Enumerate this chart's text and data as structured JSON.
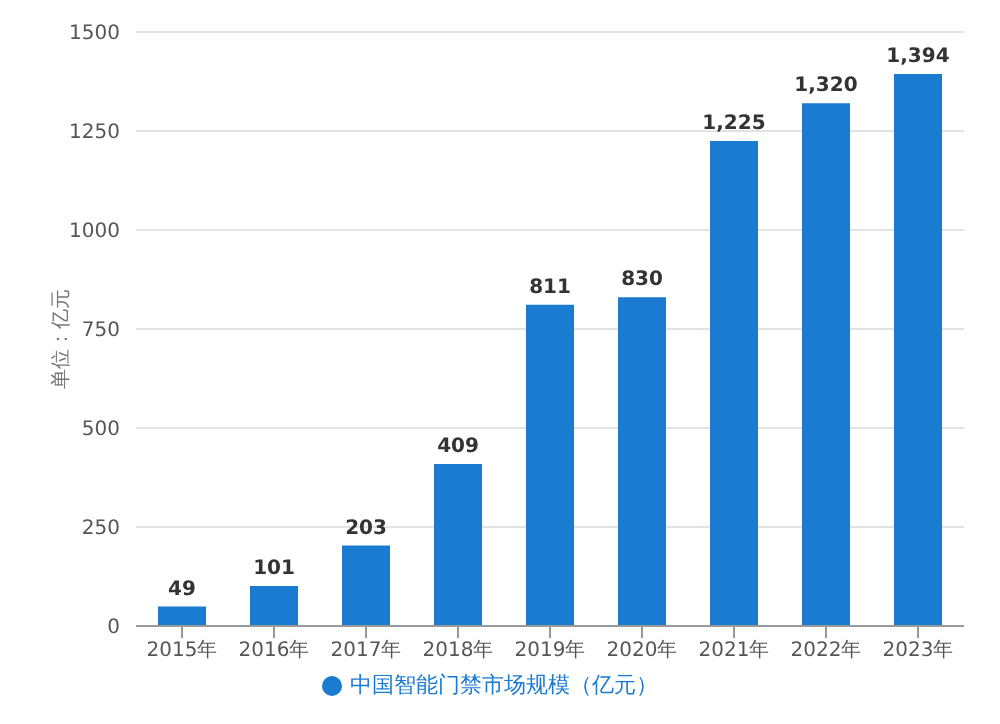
{
  "chart_data": {
    "type": "bar",
    "ylabel": "单位：亿元",
    "categories": [
      "2015年",
      "2016年",
      "2017年",
      "2018年",
      "2019年",
      "2020年",
      "2021年",
      "2022年",
      "2023年"
    ],
    "series": [
      {
        "name": "中国智能门禁市场规模（亿元）",
        "color": "#1a7bd0",
        "values": [
          49,
          101,
          203,
          409,
          811,
          830,
          1225,
          1320,
          1394
        ],
        "value_labels": [
          "49",
          "101",
          "203",
          "409",
          "811",
          "830",
          "1,225",
          "1,320",
          "1,394"
        ]
      }
    ],
    "ylim": [
      0,
      1500
    ],
    "yticks": [
      0,
      250,
      500,
      750,
      1000,
      1250,
      1500
    ],
    "grid": "y",
    "legend": "bottom"
  }
}
